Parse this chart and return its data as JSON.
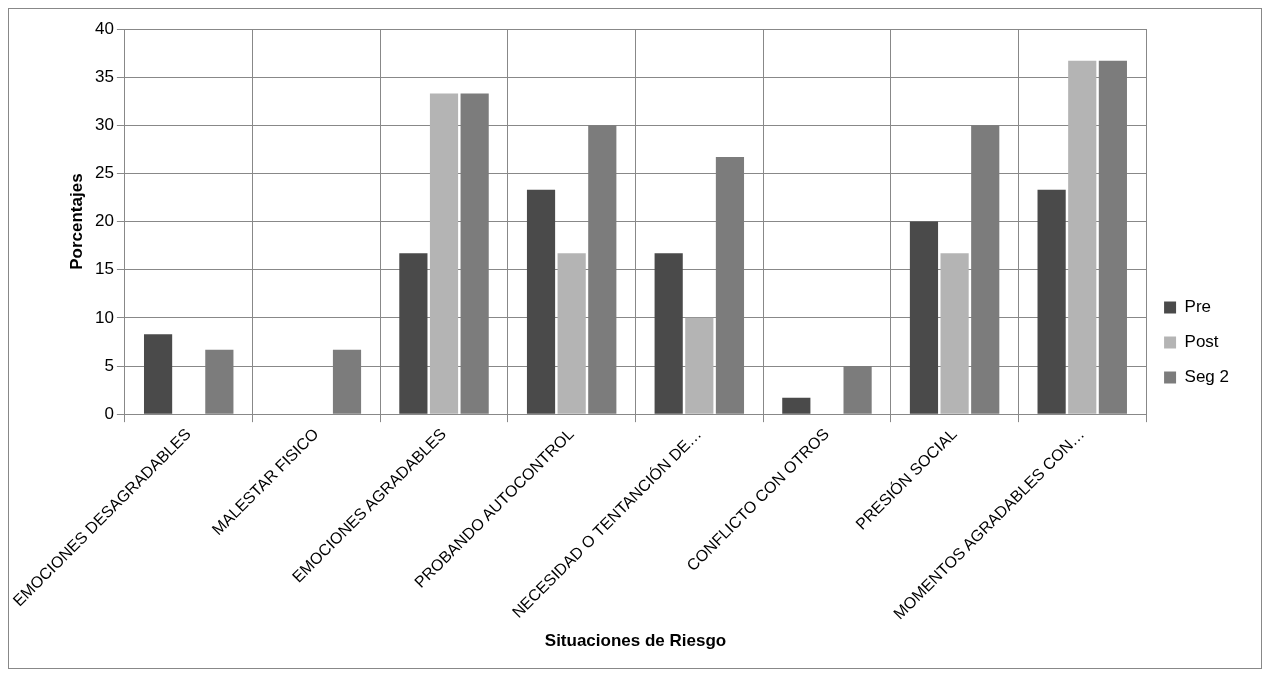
{
  "chart_data": {
    "type": "bar",
    "xlabel": "Situaciones de Riesgo",
    "ylabel": "Porcentajes",
    "categories": [
      "EMOCIONES DESAGRADABLES",
      "MALESTAR FISICO",
      "EMOCIONES AGRADABLES",
      "PROBANDO AUTOCONTROL",
      "NECESIDAD O TENTANCIÓN DE…",
      "CONFLICTO CON OTROS",
      "PRESIÓN SOCIAL",
      "MOMENTOS AGRADABLES CON…"
    ],
    "series": [
      {
        "name": "Pre",
        "color": "#4a4a4a",
        "values": [
          8.3,
          0,
          16.7,
          23.3,
          16.7,
          1.7,
          20,
          23.3
        ]
      },
      {
        "name": "Post",
        "color": "#b4b4b4",
        "values": [
          0,
          0,
          33.3,
          16.7,
          10,
          0,
          16.7,
          36.7
        ]
      },
      {
        "name": "Seg 2",
        "color": "#7c7c7c",
        "values": [
          6.7,
          6.7,
          33.3,
          30,
          26.7,
          5,
          30,
          36.7
        ]
      }
    ],
    "ylim": [
      0,
      40
    ],
    "yticks": [
      0,
      5,
      10,
      15,
      20,
      25,
      30,
      35,
      40
    ],
    "grid": true,
    "legend": "right"
  }
}
